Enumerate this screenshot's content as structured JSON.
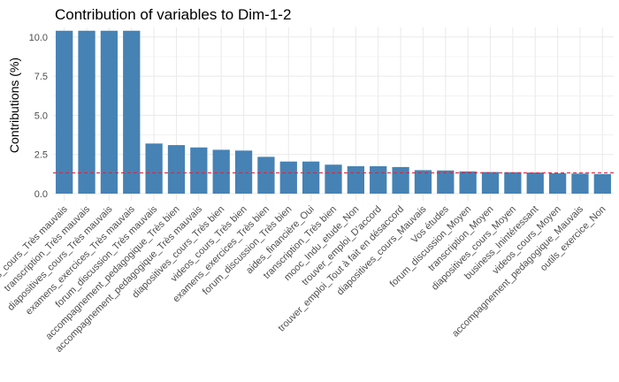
{
  "chart_data": {
    "type": "bar",
    "title": "Contribution of variables to Dim-1-2",
    "ylabel": "Contributions (%)",
    "xlabel": "",
    "ylim": [
      0,
      10.5
    ],
    "yticks": [
      0.0,
      2.5,
      5.0,
      7.5,
      10.0
    ],
    "ytick_labels": [
      "0.0",
      "2.5",
      "5.0",
      "7.5",
      "10.0"
    ],
    "grid": true,
    "categories": [
      "videos_cours_Très mauvais",
      "transcription_Très mauvais",
      "diapositives_cours_Très mauvais",
      "examens_exercices_Très mauvais",
      "forum_discussion_Très mauvais",
      "accompagnement_pedagogique_Très bien",
      "accompagnement_pedagogique_Très mauvais",
      "diapositives_cours_Très bien",
      "videos_cours_Très bien",
      "examens_exercices_Très bien",
      "forum_discussion_Très bien",
      "aides_financière_Oui",
      "transcription_Très bien",
      "mooc_Indu_etude_Non",
      "trouver_emploi_D'accord",
      "trouver_emploi_Tout à fait en désaccord",
      "diapositives_cours_Mauvais",
      "Vos études",
      "forum_discussion_Moyen",
      "transcription_Moyen",
      "diapositives_cours_Moyen",
      "business_Inintéressant",
      "videos_cours_Moyen",
      "accompagnement_pedagogique_Mauvais",
      "outils_exercice_Non"
    ],
    "values": [
      10.4,
      10.4,
      10.4,
      10.4,
      3.2,
      3.1,
      2.95,
      2.8,
      2.75,
      2.35,
      2.05,
      2.05,
      1.85,
      1.75,
      1.75,
      1.7,
      1.5,
      1.48,
      1.42,
      1.38,
      1.37,
      1.35,
      1.3,
      1.28,
      1.25
    ],
    "reference_line": 1.33,
    "colors": {
      "bar": "#4682B4",
      "reference_line": "#D7263D",
      "grid": "#EBEBEB",
      "background": "#FFFFFF"
    }
  }
}
